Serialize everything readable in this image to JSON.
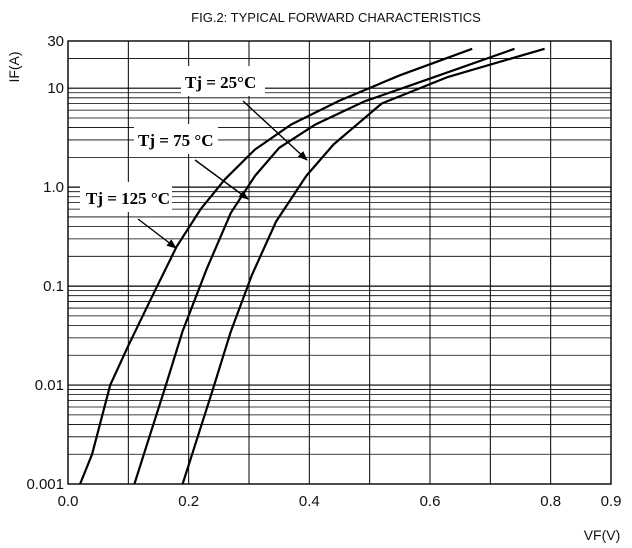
{
  "chart_data": {
    "type": "line",
    "title": "FIG.2: TYPICAL FORWARD CHARACTERISTICS",
    "xlabel": "VF(V)",
    "ylabel": "IF(A)",
    "xscale": "linear",
    "yscale": "log",
    "xlim": [
      0.0,
      0.9
    ],
    "ylim": [
      0.001,
      30
    ],
    "grid": true,
    "x_ticks": [
      {
        "value": 0.0,
        "label": "0.0"
      },
      {
        "value": 0.2,
        "label": "0.2"
      },
      {
        "value": 0.4,
        "label": "0.4"
      },
      {
        "value": 0.6,
        "label": "0.6"
      },
      {
        "value": 0.8,
        "label": "0.8"
      },
      {
        "value": 0.9,
        "label": "0.9"
      }
    ],
    "y_ticks": [
      {
        "value": 0.001,
        "label": "0.001"
      },
      {
        "value": 0.01,
        "label": "0.01"
      },
      {
        "value": 0.1,
        "label": "0.1"
      },
      {
        "value": 1.0,
        "label": "1.0"
      },
      {
        "value": 10,
        "label": "10"
      },
      {
        "value": 30,
        "label": "30"
      }
    ],
    "series": [
      {
        "name": "Tj = 125 °C",
        "x": [
          0.02,
          0.04,
          0.07,
          0.1,
          0.14,
          0.18,
          0.22,
          0.26,
          0.31,
          0.37,
          0.45,
          0.55,
          0.67
        ],
        "y": [
          0.001,
          0.002,
          0.01,
          0.025,
          0.08,
          0.25,
          0.6,
          1.2,
          2.4,
          4.3,
          7.5,
          13.5,
          25
        ]
      },
      {
        "name": "Tj = 75 °C",
        "x": [
          0.11,
          0.135,
          0.16,
          0.19,
          0.23,
          0.27,
          0.31,
          0.35,
          0.41,
          0.49,
          0.6,
          0.74
        ],
        "y": [
          0.001,
          0.003,
          0.009,
          0.035,
          0.15,
          0.55,
          1.3,
          2.5,
          4.3,
          7.3,
          12.5,
          25
        ]
      },
      {
        "name": "Tj = 25 °C",
        "x": [
          0.19,
          0.215,
          0.24,
          0.27,
          0.305,
          0.345,
          0.395,
          0.44,
          0.52,
          0.63,
          0.79
        ],
        "y": [
          0.001,
          0.003,
          0.009,
          0.035,
          0.13,
          0.45,
          1.3,
          2.7,
          7.0,
          13.0,
          25
        ]
      }
    ],
    "annotations": [
      {
        "text": "Tj = 25°C",
        "target_series": "Tj = 25 °C"
      },
      {
        "text": "Tj = 75 °C",
        "target_series": "Tj = 75 °C"
      },
      {
        "text": "Tj = 125 °C",
        "target_series": "Tj = 125 °C"
      }
    ]
  }
}
